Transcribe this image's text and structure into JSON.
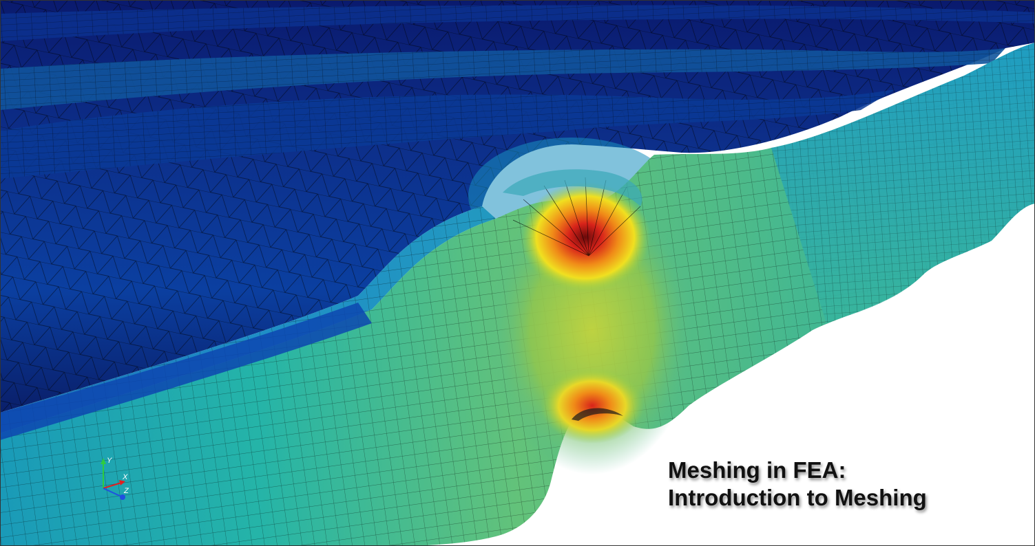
{
  "caption": {
    "line1": "Meshing in FEA:",
    "line2": "Introduction to Meshing"
  },
  "axis_triad": {
    "y_label": "Y",
    "x_label": "X",
    "z_label": "Z",
    "y_color": "#2ecc40",
    "x_color": "#e02020",
    "z_color": "#2050e0"
  },
  "colormap": [
    "#0a1a6e",
    "#0b3fb0",
    "#1e8fc8",
    "#20b5b0",
    "#5cc27a",
    "#b8d23a",
    "#f0e020",
    "#f08a18",
    "#d8231a"
  ]
}
